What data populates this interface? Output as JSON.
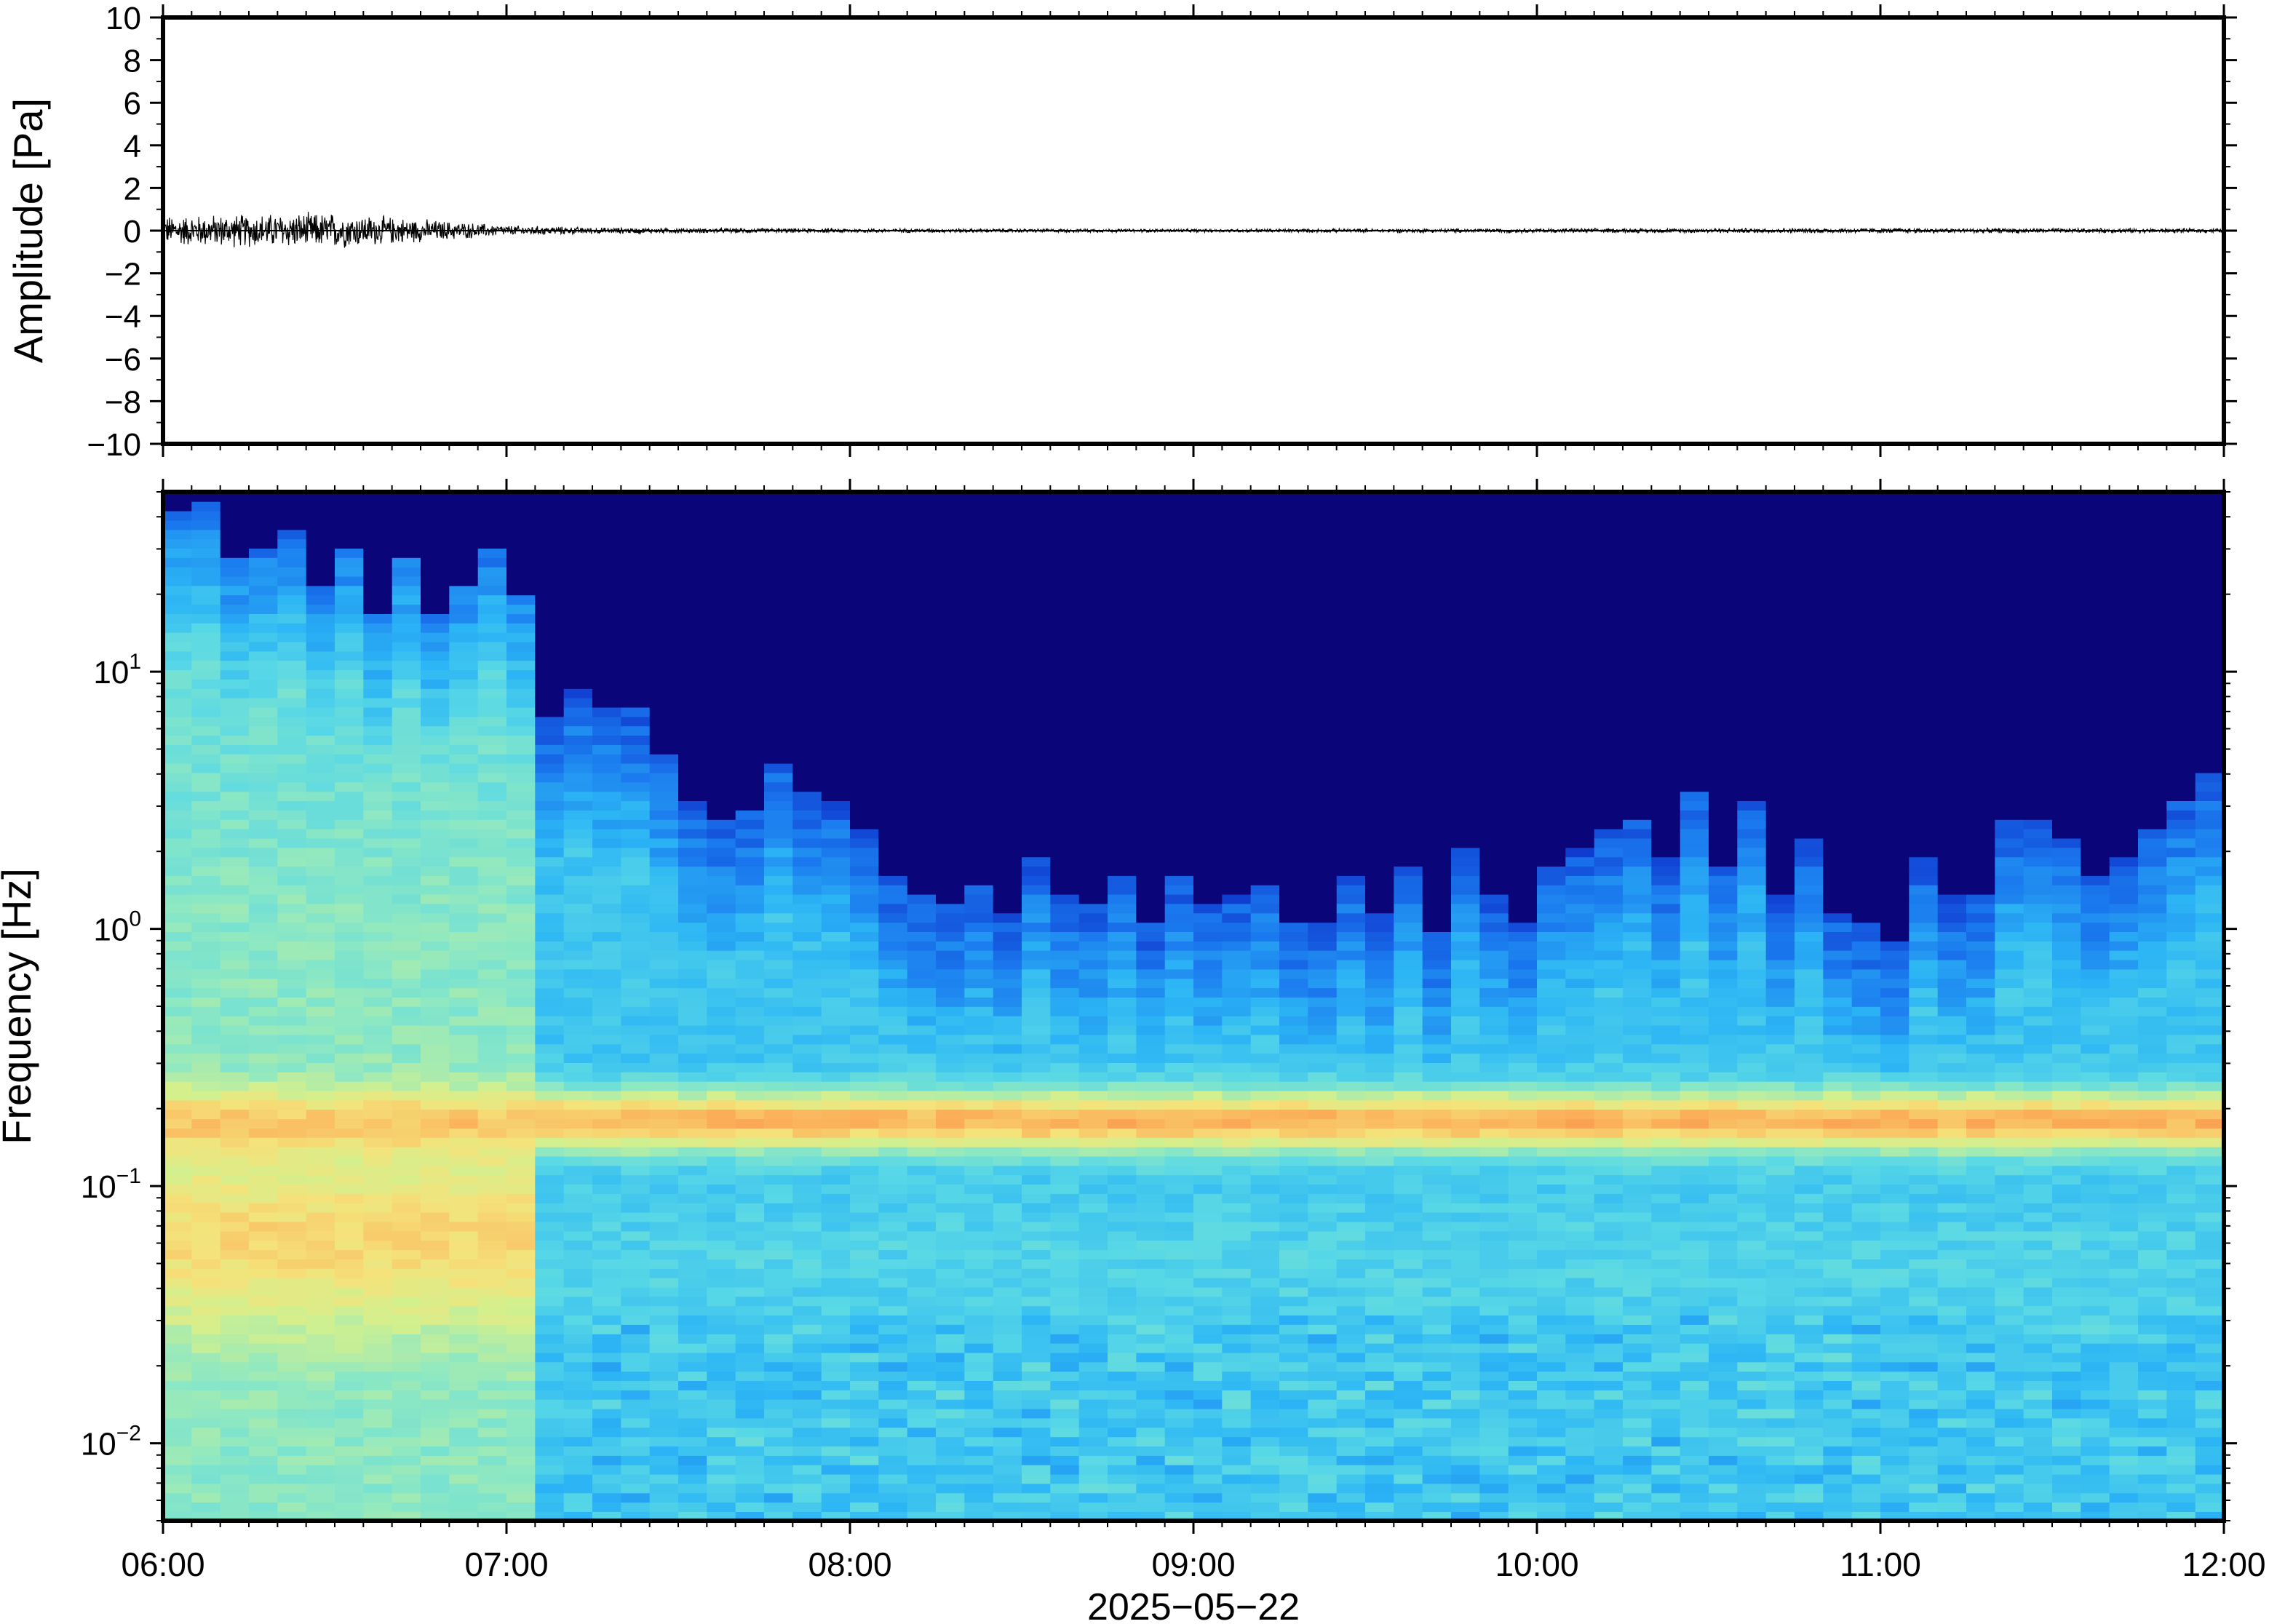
{
  "chart_data": [
    {
      "type": "line",
      "panel": "waveform",
      "ylabel": "Amplitude [Pa]",
      "ylim": [
        -10,
        10
      ],
      "yticks": [
        10,
        8,
        6,
        4,
        2,
        0,
        -2,
        -4,
        -6,
        -8,
        -10
      ],
      "ytick_labels": [
        "10",
        "8",
        "6",
        "4",
        "2",
        "0",
        "−2",
        "−4",
        "−6",
        "−8",
        "−10"
      ],
      "grid": false,
      "series": [
        {
          "color": "#000000",
          "envelope": {
            "x_hours": [
              6.0,
              6.25,
              6.5,
              6.75,
              7.0,
              7.25,
              7.5,
              8.0,
              9.0,
              10.0,
              11.0,
              12.0
            ],
            "half_amplitude_pa": [
              0.7,
              0.8,
              0.85,
              0.55,
              0.25,
              0.15,
              0.12,
              0.1,
              0.08,
              0.1,
              0.12,
              0.1
            ]
          }
        }
      ]
    },
    {
      "type": "heatmap",
      "panel": "spectrogram",
      "ylabel": "Frequency [Hz]",
      "yscale": "log",
      "ylim": [
        0.005,
        50
      ],
      "yticks": [
        10,
        1,
        0.1,
        0.01
      ],
      "ytick_labels": [
        {
          "base": "10",
          "exp": "1"
        },
        {
          "base": "10",
          "exp": "0"
        },
        {
          "base": "10",
          "exp": "−1"
        },
        {
          "base": "10",
          "exp": "−2"
        }
      ],
      "colormap": [
        "#0a0578",
        "#0d2cc8",
        "#1a78ee",
        "#2cb5f5",
        "#58d8e6",
        "#8ee8c2",
        "#d2f08e",
        "#f5e27a",
        "#fbb15a",
        "#f57a3c"
      ],
      "microseism_band_hz": 0.18,
      "upper_cutoff_hz_by_hour": {
        "x_hours": [
          6.0,
          6.5,
          7.0,
          7.1,
          7.5,
          8.0,
          8.2,
          8.5,
          9.0,
          9.5,
          10.0,
          10.5,
          11.0,
          11.5,
          12.0
        ],
        "cutoff_hz": [
          30,
          25,
          20,
          6,
          4,
          3,
          1.5,
          1.2,
          1.0,
          1.5,
          1.2,
          2.5,
          1.0,
          2.0,
          3.0
        ]
      }
    }
  ],
  "x_axis": {
    "start_hour": 6,
    "end_hour": 12,
    "tick_labels": [
      "06:00",
      "07:00",
      "08:00",
      "09:00",
      "10:00",
      "11:00",
      "12:00"
    ],
    "date_label": "2025−05−22"
  }
}
